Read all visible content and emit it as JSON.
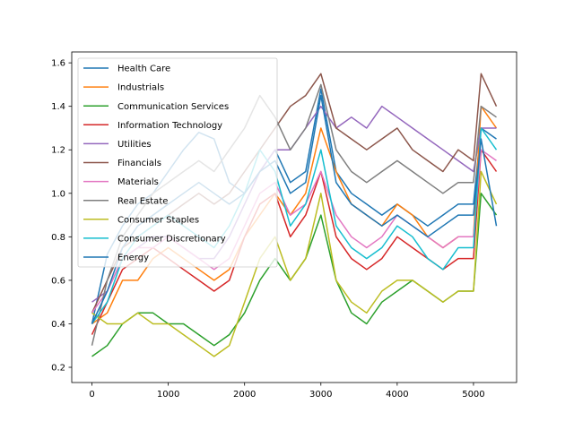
{
  "chart_data": {
    "type": "line",
    "title": "",
    "xlabel": "",
    "ylabel": "",
    "xlim": [
      -265,
      5565
    ],
    "ylim": [
      0.13,
      1.65
    ],
    "xticks": [
      0,
      1000,
      2000,
      3000,
      4000,
      5000
    ],
    "yticks": [
      0.2,
      0.4,
      0.6,
      0.8,
      1.0,
      1.2,
      1.4,
      1.6
    ],
    "xtick_labels": [
      "0",
      "1000",
      "2000",
      "3000",
      "4000",
      "5000"
    ],
    "ytick_labels": [
      "0.2",
      "0.4",
      "0.6",
      "0.8",
      "1.0",
      "1.2",
      "1.4",
      "1.6"
    ],
    "grid": false,
    "legend_position": "top-left",
    "x": [
      0,
      200,
      400,
      600,
      800,
      1000,
      1200,
      1400,
      1600,
      1800,
      2000,
      2200,
      2400,
      2600,
      2800,
      3000,
      3200,
      3400,
      3600,
      3800,
      4000,
      4200,
      4400,
      4600,
      4800,
      5000,
      5100,
      5300
    ],
    "series": [
      {
        "name": "Health Care",
        "color": "#1f77b4",
        "values": [
          0.4,
          0.72,
          0.85,
          0.95,
          1.0,
          1.1,
          1.2,
          1.28,
          1.25,
          1.05,
          1.0,
          1.1,
          1.2,
          1.05,
          1.1,
          1.48,
          1.1,
          1.0,
          0.95,
          0.9,
          0.95,
          0.9,
          0.85,
          0.9,
          0.95,
          0.95,
          1.3,
          1.25
        ]
      },
      {
        "name": "Industrials",
        "color": "#ff7f0e",
        "values": [
          0.4,
          0.45,
          0.6,
          0.6,
          0.7,
          0.75,
          0.7,
          0.65,
          0.6,
          0.65,
          0.8,
          0.9,
          1.0,
          0.9,
          1.0,
          1.3,
          1.1,
          0.95,
          0.9,
          0.85,
          0.95,
          0.9,
          0.8,
          0.75,
          0.8,
          0.8,
          1.4,
          1.3
        ]
      },
      {
        "name": "Communication Services",
        "color": "#2ca02c",
        "values": [
          0.25,
          0.3,
          0.4,
          0.45,
          0.45,
          0.4,
          0.4,
          0.35,
          0.3,
          0.35,
          0.45,
          0.6,
          0.7,
          0.6,
          0.7,
          0.9,
          0.6,
          0.45,
          0.4,
          0.5,
          0.55,
          0.6,
          0.55,
          0.5,
          0.55,
          0.55,
          1.0,
          0.9
        ]
      },
      {
        "name": "Information Technology",
        "color": "#d62728",
        "values": [
          0.35,
          0.5,
          0.65,
          0.7,
          0.75,
          0.7,
          0.65,
          0.6,
          0.55,
          0.6,
          0.8,
          0.95,
          1.0,
          0.8,
          0.9,
          1.1,
          0.8,
          0.7,
          0.65,
          0.7,
          0.8,
          0.75,
          0.7,
          0.65,
          0.7,
          0.7,
          1.2,
          1.1
        ]
      },
      {
        "name": "Utilities",
        "color": "#9467bd",
        "values": [
          0.5,
          0.55,
          0.7,
          0.75,
          0.8,
          0.8,
          0.75,
          0.7,
          0.7,
          0.8,
          0.95,
          1.1,
          1.2,
          1.2,
          1.3,
          1.4,
          1.3,
          1.35,
          1.3,
          1.4,
          1.35,
          1.3,
          1.25,
          1.2,
          1.15,
          1.1,
          1.3,
          1.3
        ]
      },
      {
        "name": "Financials",
        "color": "#8c564b",
        "values": [
          0.45,
          0.6,
          0.75,
          0.8,
          0.85,
          0.9,
          0.95,
          1.0,
          0.95,
          1.0,
          1.1,
          1.2,
          1.3,
          1.4,
          1.45,
          1.55,
          1.3,
          1.25,
          1.2,
          1.25,
          1.3,
          1.2,
          1.15,
          1.1,
          1.2,
          1.15,
          1.55,
          1.4
        ]
      },
      {
        "name": "Materials",
        "color": "#e377c2",
        "values": [
          0.45,
          0.55,
          0.7,
          0.75,
          0.75,
          0.8,
          0.75,
          0.7,
          0.65,
          0.7,
          0.85,
          1.0,
          1.05,
          0.9,
          0.95,
          1.1,
          0.9,
          0.8,
          0.75,
          0.8,
          0.9,
          0.85,
          0.8,
          0.75,
          0.8,
          0.8,
          1.2,
          1.15
        ]
      },
      {
        "name": "Real Estate",
        "color": "#7f7f7f",
        "values": [
          0.3,
          0.6,
          0.8,
          0.9,
          1.0,
          1.05,
          1.1,
          1.15,
          1.1,
          1.2,
          1.3,
          1.45,
          1.35,
          1.2,
          1.3,
          1.5,
          1.2,
          1.1,
          1.05,
          1.1,
          1.15,
          1.1,
          1.05,
          1.0,
          1.05,
          1.05,
          1.4,
          1.35
        ]
      },
      {
        "name": "Consumer Staples",
        "color": "#bcbd22",
        "values": [
          0.45,
          0.4,
          0.4,
          0.45,
          0.4,
          0.4,
          0.35,
          0.3,
          0.25,
          0.3,
          0.5,
          0.7,
          0.8,
          0.6,
          0.7,
          1.0,
          0.6,
          0.5,
          0.45,
          0.55,
          0.6,
          0.6,
          0.55,
          0.5,
          0.55,
          0.55,
          1.1,
          0.95
        ]
      },
      {
        "name": "Consumer Discretionary",
        "color": "#17becf",
        "values": [
          0.4,
          0.5,
          0.7,
          0.8,
          0.85,
          0.9,
          0.85,
          0.8,
          0.75,
          0.85,
          1.0,
          1.2,
          1.1,
          0.85,
          0.95,
          1.2,
          0.85,
          0.75,
          0.7,
          0.75,
          0.85,
          0.8,
          0.7,
          0.65,
          0.75,
          0.75,
          1.3,
          1.2
        ]
      },
      {
        "name": "Energy",
        "color": "#1f77b4",
        "values": [
          0.4,
          0.55,
          0.75,
          0.85,
          0.9,
          0.95,
          1.0,
          1.05,
          1.0,
          0.95,
          1.0,
          1.1,
          1.15,
          1.0,
          1.05,
          1.45,
          1.05,
          0.95,
          0.9,
          0.85,
          0.9,
          0.85,
          0.8,
          0.85,
          0.9,
          0.9,
          1.25,
          0.85
        ]
      }
    ]
  }
}
